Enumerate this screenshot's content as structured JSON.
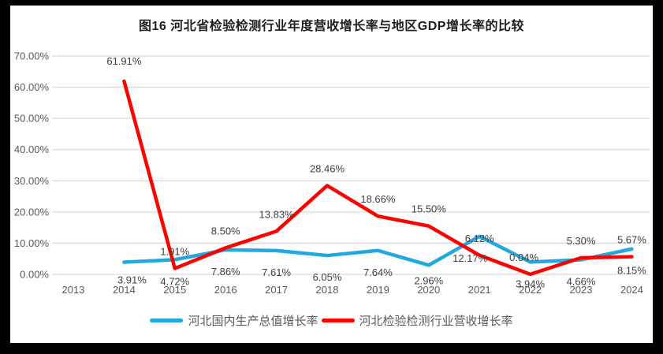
{
  "chart_data": {
    "type": "line",
    "title": "图16 河北省检验检测行业年度营收增长率与地区GDP增长率的比较",
    "categories": [
      "2013",
      "2014",
      "2015",
      "2016",
      "2017",
      "2018",
      "2019",
      "2020",
      "2021",
      "2022",
      "2023",
      "2024"
    ],
    "series": [
      {
        "name": "河北国内生产总值增长率",
        "color": "#20A8E0",
        "values": [
          null,
          3.91,
          4.72,
          7.86,
          7.61,
          6.05,
          7.64,
          2.96,
          12.17,
          3.94,
          4.66,
          8.15
        ],
        "data_labels": [
          "",
          "3.91%",
          "4.72%",
          "7.86%",
          "7.61%",
          "6.05%",
          "7.64%",
          "2.96%",
          "12.17%",
          "3.94%",
          "4.66%",
          "8.15%"
        ]
      },
      {
        "name": "河北检验检测行业营收增长率",
        "color": "#FF0000",
        "values": [
          null,
          61.91,
          1.91,
          8.5,
          13.83,
          28.46,
          18.66,
          15.5,
          6.12,
          0.04,
          5.3,
          5.67
        ],
        "data_labels": [
          "",
          "61.91%",
          "1.91%",
          "8.50%",
          "13.83%",
          "28.46%",
          "18.66%",
          "15.50%",
          "6.12%",
          "0.04%",
          "5.30%",
          "5.67%"
        ]
      }
    ],
    "y_axis": {
      "min": 0,
      "max": 70,
      "step": 10,
      "tick_labels": [
        "0.00%",
        "10.00%",
        "20.00%",
        "30.00%",
        "40.00%",
        "50.00%",
        "60.00%",
        "70.00%"
      ]
    },
    "x_axis": {
      "label": ""
    },
    "grid": true,
    "legend_position": "bottom",
    "ylabel": "",
    "xlabel": ""
  },
  "colors": {
    "grid": "#D9D9D9",
    "axis_text": "#595959",
    "data_label_text": "#404040",
    "title_text": "#1f1f1f",
    "frame": "#000000",
    "chart_background": "#FFFFFF"
  }
}
